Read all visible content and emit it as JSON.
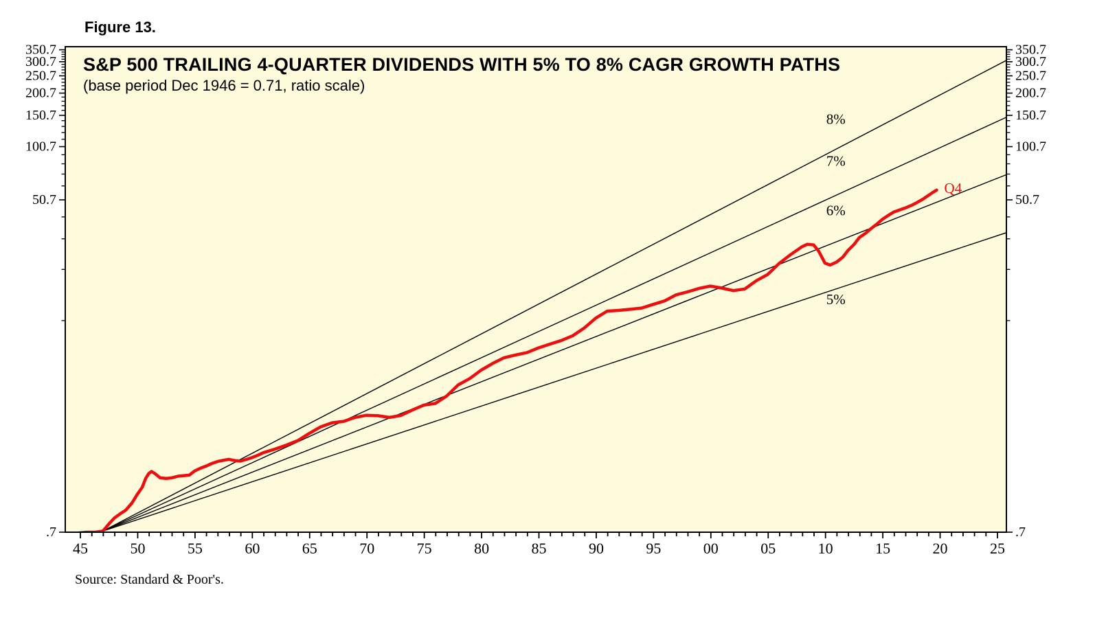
{
  "figure": {
    "label": "Figure 13."
  },
  "source": "Source: Standard & Poor's.",
  "chart_data": {
    "type": "line",
    "title": "S&P 500 TRAILING 4-QUARTER DIVIDENDS WITH 5% TO 8% CAGR GROWTH PATHS",
    "subtitle": "(base period Dec 1946 = 0.71, ratio scale)",
    "plot_bg": "#FDFBDB",
    "scale": "ratio (log)",
    "x_axis": {
      "min": 1943.68,
      "max": 2025.78,
      "tick_start": 1945,
      "tick_end": 2025,
      "tick_step": 1,
      "labeled_ticks": [
        1945,
        1950,
        1955,
        1960,
        1965,
        1970,
        1975,
        1980,
        1985,
        1990,
        1995,
        2000,
        2005,
        2010,
        2015,
        2020,
        2025
      ],
      "labels": [
        "45",
        "50",
        "55",
        "60",
        "65",
        "70",
        "75",
        "80",
        "85",
        "90",
        "95",
        "00",
        "05",
        "10",
        "15",
        "20",
        "25"
      ]
    },
    "y_axis": {
      "scale": "log",
      "min": 0.7,
      "max": 365,
      "major_ticks": [
        0.7,
        50.7,
        100.7,
        150.7,
        200.7,
        250.7,
        300.7,
        350.7
      ],
      "major_labels": [
        ".7",
        "50.7",
        "100.7",
        "150.7",
        "200.7",
        "250.7",
        "300.7",
        "350.7"
      ],
      "minor_tick_base": 0.7,
      "minor_tick_step": 10,
      "minor_tick_count": 34
    },
    "growth_paths": {
      "base_year": 1946.96,
      "base_value": 0.71,
      "color": "#000000",
      "rates": [
        {
          "pct": 8,
          "label": "8%",
          "label_year": 2010.9,
          "label_dy": -44
        },
        {
          "pct": 7,
          "label": "7%",
          "label_year": 2010.9,
          "label_dy": -50
        },
        {
          "pct": 6,
          "label": "6%",
          "label_year": 2010.9,
          "label_dy": -46
        },
        {
          "pct": 5,
          "label": "5%",
          "label_year": 2010.9,
          "label_dy": 15
        }
      ]
    },
    "series": {
      "name": "S&P 500 trailing 4-quarter dividends",
      "color": "#ED0F0F",
      "end_label": "Q4",
      "points": [
        [
          1944.6,
          0.69
        ],
        [
          1945.5,
          0.7
        ],
        [
          1946.3,
          0.7
        ],
        [
          1946.96,
          0.71
        ],
        [
          1947.5,
          0.78
        ],
        [
          1947.96,
          0.84
        ],
        [
          1948.5,
          0.89
        ],
        [
          1948.96,
          0.93
        ],
        [
          1949.5,
          1.02
        ],
        [
          1949.96,
          1.14
        ],
        [
          1950.4,
          1.25
        ],
        [
          1950.7,
          1.4
        ],
        [
          1950.96,
          1.49
        ],
        [
          1951.2,
          1.53
        ],
        [
          1951.5,
          1.49
        ],
        [
          1951.96,
          1.41
        ],
        [
          1952.5,
          1.4
        ],
        [
          1952.96,
          1.41
        ],
        [
          1953.5,
          1.44
        ],
        [
          1953.96,
          1.45
        ],
        [
          1954.5,
          1.46
        ],
        [
          1954.96,
          1.54
        ],
        [
          1955.5,
          1.6
        ],
        [
          1955.96,
          1.64
        ],
        [
          1956.5,
          1.7
        ],
        [
          1956.96,
          1.74
        ],
        [
          1957.5,
          1.77
        ],
        [
          1957.96,
          1.79
        ],
        [
          1958.5,
          1.76
        ],
        [
          1958.96,
          1.75
        ],
        [
          1959.5,
          1.79
        ],
        [
          1959.96,
          1.83
        ],
        [
          1960.5,
          1.89
        ],
        [
          1960.96,
          1.95
        ],
        [
          1961.96,
          2.04
        ],
        [
          1962.96,
          2.15
        ],
        [
          1963.96,
          2.28
        ],
        [
          1964.96,
          2.5
        ],
        [
          1965.96,
          2.72
        ],
        [
          1966.96,
          2.87
        ],
        [
          1967.96,
          2.92
        ],
        [
          1968.96,
          3.07
        ],
        [
          1969.96,
          3.16
        ],
        [
          1970.96,
          3.14
        ],
        [
          1971.96,
          3.07
        ],
        [
          1972.96,
          3.15
        ],
        [
          1973.96,
          3.38
        ],
        [
          1974.96,
          3.6
        ],
        [
          1975.96,
          3.68
        ],
        [
          1976.96,
          4.05
        ],
        [
          1977.96,
          4.67
        ],
        [
          1978.96,
          5.07
        ],
        [
          1979.96,
          5.65
        ],
        [
          1980.96,
          6.16
        ],
        [
          1981.96,
          6.63
        ],
        [
          1982.96,
          6.87
        ],
        [
          1983.96,
          7.09
        ],
        [
          1984.96,
          7.53
        ],
        [
          1985.96,
          7.9
        ],
        [
          1986.96,
          8.28
        ],
        [
          1987.96,
          8.81
        ],
        [
          1988.96,
          9.73
        ],
        [
          1989.96,
          11.05
        ],
        [
          1990.96,
          12.1
        ],
        [
          1991.96,
          12.2
        ],
        [
          1992.96,
          12.38
        ],
        [
          1993.96,
          12.58
        ],
        [
          1994.96,
          13.18
        ],
        [
          1995.96,
          13.79
        ],
        [
          1996.96,
          14.9
        ],
        [
          1997.96,
          15.5
        ],
        [
          1998.96,
          16.2
        ],
        [
          1999.96,
          16.69
        ],
        [
          2000.96,
          16.27
        ],
        [
          2001.96,
          15.74
        ],
        [
          2002.96,
          16.08
        ],
        [
          2003.96,
          17.88
        ],
        [
          2004.96,
          19.41
        ],
        [
          2005.96,
          22.38
        ],
        [
          2006.96,
          25.05
        ],
        [
          2007.96,
          27.73
        ],
        [
          2008.4,
          28.6
        ],
        [
          2008.96,
          28.39
        ],
        [
          2009.4,
          26.2
        ],
        [
          2009.96,
          22.41
        ],
        [
          2010.4,
          21.9
        ],
        [
          2010.96,
          22.73
        ],
        [
          2011.5,
          24.2
        ],
        [
          2011.96,
          26.43
        ],
        [
          2012.5,
          28.6
        ],
        [
          2012.96,
          31.25
        ],
        [
          2013.5,
          33.0
        ],
        [
          2013.96,
          34.99
        ],
        [
          2014.5,
          37.2
        ],
        [
          2014.96,
          39.44
        ],
        [
          2015.5,
          41.6
        ],
        [
          2015.96,
          43.39
        ],
        [
          2016.5,
          44.6
        ],
        [
          2016.96,
          45.7
        ],
        [
          2017.5,
          47.2
        ],
        [
          2017.96,
          48.93
        ],
        [
          2018.5,
          51.2
        ],
        [
          2018.96,
          53.61
        ],
        [
          2019.4,
          56.0
        ],
        [
          2019.7,
          57.5
        ]
      ]
    }
  }
}
